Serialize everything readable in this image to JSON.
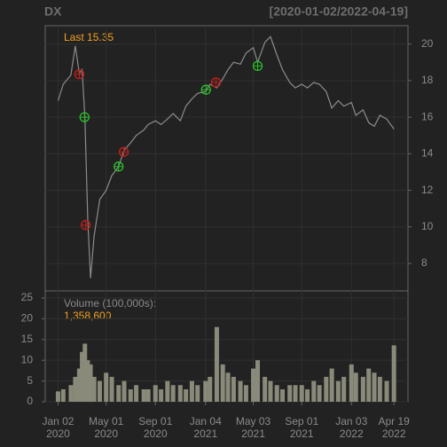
{
  "chart_data": {
    "type": "financial",
    "title": "DX",
    "subtitle": "[2020-01-02/2022-04-19]",
    "last_label": "Last 15.35",
    "volume_label": "Volume (100,000s):",
    "volume_last": "1,358,600",
    "xlim": [
      "2019-12-01",
      "2022-05-24"
    ],
    "xticks": [
      {
        "value": "2020-01-02",
        "label": [
          "Jan 02",
          "2020"
        ]
      },
      {
        "value": "2020-05-01",
        "label": [
          "May 01",
          "2020"
        ]
      },
      {
        "value": "2020-09-01",
        "label": [
          "Sep 01",
          "2020"
        ]
      },
      {
        "value": "2021-01-04",
        "label": [
          "Jan 04",
          "2021"
        ]
      },
      {
        "value": "2021-05-03",
        "label": [
          "May 03",
          "2021"
        ]
      },
      {
        "value": "2021-09-01",
        "label": [
          "Sep 01",
          "2021"
        ]
      },
      {
        "value": "2022-01-03",
        "label": [
          "Jan 03",
          "2022"
        ]
      },
      {
        "value": "2022-04-19",
        "label": [
          "Apr 19",
          "2022"
        ]
      }
    ],
    "x": [
      "2020-01-02",
      "2020-01-15",
      "2020-02-03",
      "2020-02-14",
      "2020-02-24",
      "2020-03-02",
      "2020-03-09",
      "2020-03-16",
      "2020-03-23",
      "2020-04-01",
      "2020-04-15",
      "2020-05-01",
      "2020-05-15",
      "2020-06-01",
      "2020-06-15",
      "2020-07-01",
      "2020-07-15",
      "2020-08-03",
      "2020-08-14",
      "2020-09-01",
      "2020-09-15",
      "2020-10-01",
      "2020-10-15",
      "2020-11-02",
      "2020-11-16",
      "2020-12-01",
      "2020-12-15",
      "2021-01-04",
      "2021-01-15",
      "2021-02-01",
      "2021-02-16",
      "2021-03-01",
      "2021-03-15",
      "2021-04-01",
      "2021-04-15",
      "2021-05-03",
      "2021-05-14",
      "2021-06-01",
      "2021-06-15",
      "2021-07-01",
      "2021-07-15",
      "2021-08-02",
      "2021-08-16",
      "2021-09-01",
      "2021-09-15",
      "2021-10-01",
      "2021-10-15",
      "2021-11-01",
      "2021-11-15",
      "2021-12-01",
      "2021-12-15",
      "2022-01-03",
      "2022-01-14",
      "2022-02-01",
      "2022-02-15",
      "2022-03-01",
      "2022-03-15",
      "2022-04-01",
      "2022-04-19"
    ],
    "price": {
      "color": "#8c8c8c",
      "values": [
        16.9,
        17.8,
        18.3,
        19.9,
        18.4,
        18.6,
        16.0,
        10.5,
        7.2,
        9.5,
        11.5,
        12.0,
        12.8,
        13.3,
        14.2,
        14.6,
        15.0,
        15.3,
        15.6,
        15.8,
        15.6,
        15.9,
        16.2,
        15.8,
        16.6,
        17.0,
        17.3,
        17.4,
        17.8,
        17.6,
        18.1,
        18.6,
        19.0,
        18.9,
        19.5,
        19.8,
        19.0,
        20.1,
        20.4,
        19.4,
        18.6,
        17.9,
        17.6,
        17.8,
        17.6,
        17.9,
        17.8,
        17.4,
        16.5,
        16.9,
        16.6,
        16.8,
        16.1,
        16.4,
        15.7,
        15.5,
        16.1,
        15.9,
        15.35
      ]
    },
    "ylim": [
      6.5,
      21.0
    ],
    "yticks": [
      8,
      10,
      12,
      14,
      16,
      18,
      20
    ],
    "volume": {
      "color": "#8a8a7a",
      "values": [
        2.5,
        3,
        4,
        6,
        8,
        12,
        14,
        10,
        9,
        6,
        5,
        7,
        6,
        4,
        5,
        3,
        4,
        3,
        3,
        4,
        3,
        5,
        4,
        4,
        3,
        5,
        4,
        5,
        6,
        18,
        9,
        7,
        6,
        5,
        4,
        8,
        10,
        6,
        5,
        4,
        3,
        4,
        4,
        4,
        3,
        5,
        4,
        6,
        8,
        5,
        6,
        9,
        7,
        6,
        8,
        7,
        6,
        5,
        13.586
      ]
    },
    "vlim": [
      0,
      26.7
    ],
    "vticks": [
      0,
      5,
      10,
      15,
      20,
      25
    ],
    "markers": [
      {
        "x": "2020-02-24",
        "value": 18.35,
        "color": "#c0201c"
      },
      {
        "x": "2020-03-11",
        "value": 10.1,
        "color": "#c0201c"
      },
      {
        "x": "2020-06-14",
        "value": 14.1,
        "color": "#c0201c"
      },
      {
        "x": "2021-01-30",
        "value": 17.9,
        "color": "#c0201c"
      },
      {
        "x": "2020-03-08",
        "value": 16.0,
        "color": "#2ac02a"
      },
      {
        "x": "2020-06-01",
        "value": 13.3,
        "color": "#2ac02a"
      },
      {
        "x": "2021-01-05",
        "value": 17.5,
        "color": "#2ac02a"
      },
      {
        "x": "2021-05-14",
        "value": 18.8,
        "color": "#2ac02a"
      }
    ]
  }
}
